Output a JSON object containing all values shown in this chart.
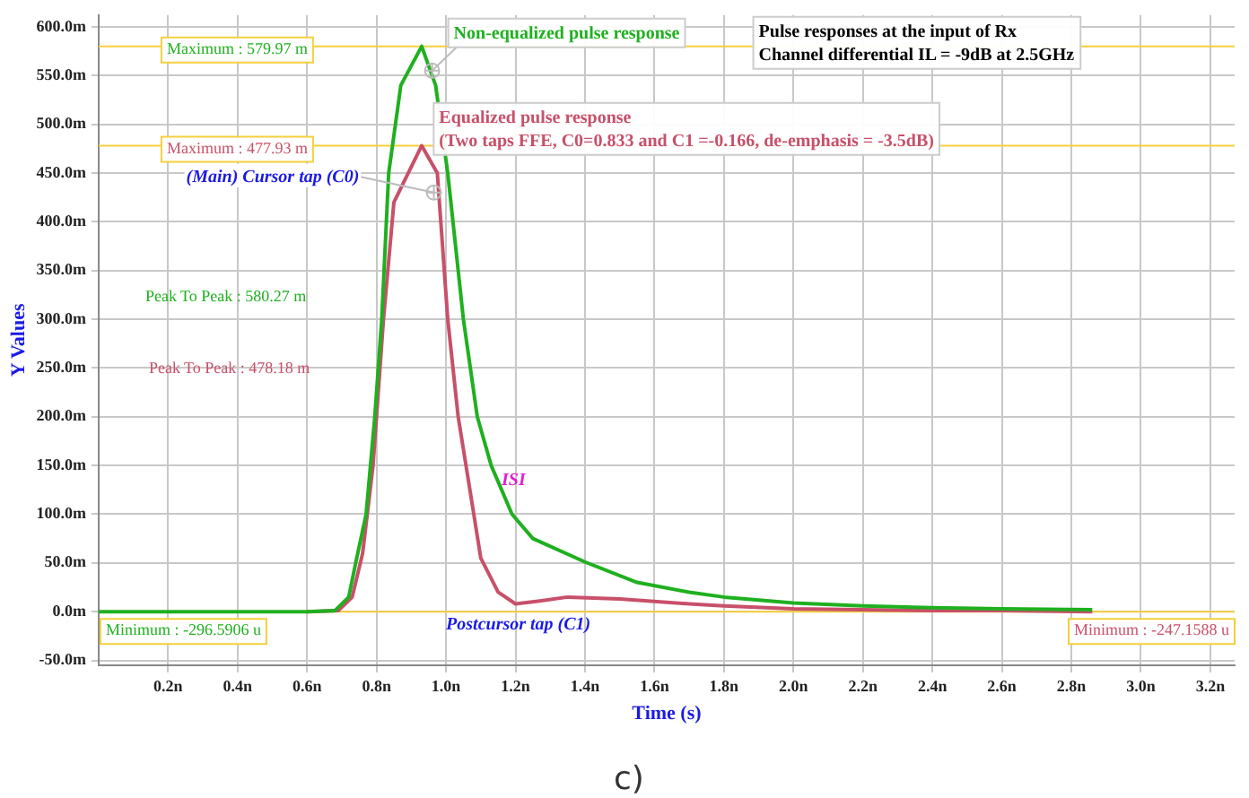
{
  "chart_data": {
    "type": "line",
    "title": "Pulse responses at the input of Rx\nChannel differential IL = -9dB at 2.5GHz",
    "xlabel": "Time (s)",
    "ylabel": "Y Values",
    "series": [
      {
        "color": "#1fb01f",
        "x": [
          0,
          0.4,
          0.6,
          0.68,
          0.72,
          0.74,
          0.77,
          0.795,
          0.815,
          0.835,
          0.87,
          0.93,
          0.97,
          1.005,
          1.05,
          1.09,
          1.13,
          1.19,
          1.25,
          1.4,
          1.55,
          1.7,
          1.8,
          2.0,
          2.2,
          2.4,
          2.6,
          2.86
        ],
        "values": [
          0,
          0,
          0,
          1,
          15,
          50,
          100,
          200,
          300,
          450,
          540,
          580,
          540,
          450,
          300,
          200,
          150,
          100,
          75,
          51,
          30,
          20,
          15,
          9,
          6,
          4,
          3,
          2
        ]
      },
      {
        "color": "#c8506a",
        "x": [
          0.6,
          0.69,
          0.73,
          0.76,
          0.79,
          0.82,
          0.85,
          0.93,
          0.975,
          1.005,
          1.035,
          1.08,
          1.1,
          1.15,
          1.2,
          1.27,
          1.35,
          1.5,
          1.7,
          1.8,
          2.0,
          2.2,
          2.4,
          2.6,
          2.86
        ],
        "values": [
          0,
          1,
          15,
          60,
          150,
          300,
          420,
          478,
          450,
          300,
          200,
          100,
          55,
          20,
          8,
          11,
          15,
          13,
          8,
          6,
          3,
          2,
          1,
          1,
          0
        ]
      }
    ],
    "xlim": [
      0,
      3.27
    ],
    "xticks": [
      {
        "value": 0.2,
        "label": "0.2n"
      },
      {
        "value": 0.4,
        "label": "0.4n"
      },
      {
        "value": 0.6,
        "label": "0.6n"
      },
      {
        "value": 0.8,
        "label": "0.8n"
      },
      {
        "value": 1.0,
        "label": "1.0n"
      },
      {
        "value": 1.2,
        "label": "1.2n"
      },
      {
        "value": 1.4,
        "label": "1.4n"
      },
      {
        "value": 1.6,
        "label": "1.6n"
      },
      {
        "value": 1.8,
        "label": "1.8n"
      },
      {
        "value": 2.0,
        "label": "2.0n"
      },
      {
        "value": 2.2,
        "label": "2.2n"
      },
      {
        "value": 2.4,
        "label": "2.4n"
      },
      {
        "value": 2.6,
        "label": "2.6n"
      },
      {
        "value": 2.8,
        "label": "2.8n"
      },
      {
        "value": 3.0,
        "label": "3.0n"
      },
      {
        "value": 3.2,
        "label": "3.2n"
      }
    ],
    "ylim": [
      -55,
      612
    ],
    "yticks": [
      {
        "value": -50,
        "label": "-50.0m"
      },
      {
        "value": 0,
        "label": "0.0m"
      },
      {
        "value": 50,
        "label": "50.0m"
      },
      {
        "value": 100,
        "label": "100.0m"
      },
      {
        "value": 150,
        "label": "150.0m"
      },
      {
        "value": 200,
        "label": "200.0m"
      },
      {
        "value": 250,
        "label": "250.0m"
      },
      {
        "value": 300,
        "label": "300.0m"
      },
      {
        "value": 350,
        "label": "350.0m"
      },
      {
        "value": 400,
        "label": "400.0m"
      },
      {
        "value": 450,
        "label": "450.0m"
      },
      {
        "value": 500,
        "label": "500.0m"
      },
      {
        "value": 550,
        "label": "550.0m"
      },
      {
        "value": 600,
        "label": "600.0m"
      }
    ],
    "ref_lines": [
      {
        "axis": "y",
        "value": 579.97,
        "label": "Maximum : 579.97 m",
        "color": "#f5cf3c"
      },
      {
        "axis": "y",
        "value": 477.93,
        "label": "Maximum : 477.93 m",
        "color": "#f5cf3c"
      },
      {
        "axis": "y",
        "value": 0,
        "color": "#f5cf3c"
      }
    ],
    "annotations": [
      {
        "text": "Non-equalized pulse response",
        "x": 0.96,
        "y": 555
      },
      "Equalized pulse response\n(Two taps FFE, C0=0.833 and C1 =-0.166, de-emphasis = -3.5dB)",
      {
        "text": "(Main) Cursor tap (C0)",
        "x": 0.965,
        "y": 430
      },
      "Peak To Peak : 580.27 m",
      "Peak To Peak : 478.18 m",
      "ISI",
      "Postcursor tap (C1)",
      "c)",
      "Minimum : -296.5906 u",
      "Minimum : -247.1588 u"
    ],
    "grid": true,
    "legend": false,
    "marker": "none",
    "line_style": "solid"
  }
}
